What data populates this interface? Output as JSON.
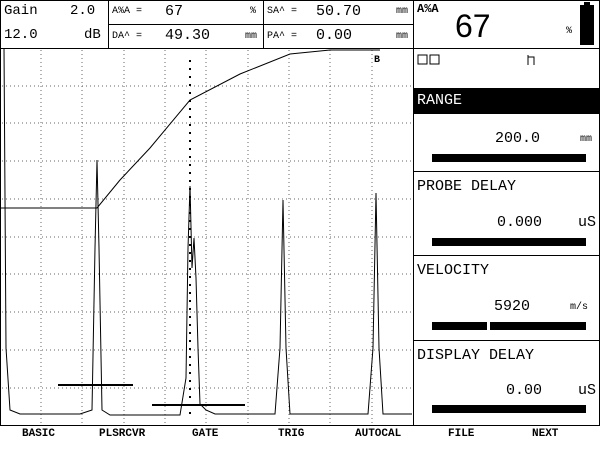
{
  "header": {
    "gain": {
      "label": "Gain",
      "value": "2.0",
      "db_value": "12.0",
      "db_unit": "dB"
    },
    "readings": [
      {
        "label": "A%A =",
        "value": "67",
        "unit": "%"
      },
      {
        "label": "SA^ =",
        "value": "50.70",
        "unit": "mm"
      },
      {
        "label": "DA^ =",
        "value": "49.30",
        "unit": "mm"
      },
      {
        "label": "PA^ =",
        "value": "0.00",
        "unit": "mm"
      }
    ],
    "big_reading": {
      "label": "A%A",
      "value": "67",
      "unit": "%"
    }
  },
  "display": {
    "gate_marker": "B"
  },
  "parameters": [
    {
      "label": "RANGE",
      "value": "200.0",
      "unit": "mm"
    },
    {
      "label": "PROBE DELAY",
      "value": "0.000",
      "unit": "uS"
    },
    {
      "label": "VELOCITY",
      "value": "5920",
      "unit": "m/s"
    },
    {
      "label": "DISPLAY DELAY",
      "value": "0.00",
      "unit": "uS"
    }
  ],
  "menu": [
    "BASIC",
    "PLSRCVR",
    "GATE",
    "TRIG",
    "AUTOCAL",
    "FILE",
    "NEXT"
  ]
}
